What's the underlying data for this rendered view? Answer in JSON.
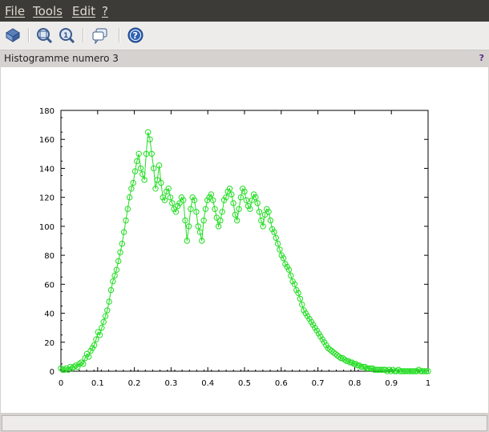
{
  "menu": {
    "file": "File",
    "tools": "Tools",
    "edit": "Edit",
    "help": "?"
  },
  "toolbar": {
    "buttons": [
      {
        "name": "rotate-icon"
      },
      {
        "name": "zoom-icon"
      },
      {
        "name": "zoom-reset-icon"
      },
      {
        "name": "datatip-icon"
      },
      {
        "name": "help-icon"
      }
    ]
  },
  "figure": {
    "title": "Histogramme numero 3",
    "help": "?"
  },
  "colors": {
    "series": "#22dd22",
    "menubar_bg": "#3c3b37"
  },
  "chart_data": {
    "type": "line",
    "title": "",
    "xlabel": "",
    "ylabel": "",
    "xlim": [
      0,
      1
    ],
    "ylim": [
      0,
      180
    ],
    "x_ticks": [
      "0",
      "0.1",
      "0.2",
      "0.3",
      "0.4",
      "0.5",
      "0.6",
      "0.7",
      "0.8",
      "0.9",
      "1"
    ],
    "y_ticks": [
      "0",
      "20",
      "40",
      "60",
      "80",
      "100",
      "120",
      "140",
      "160",
      "180"
    ],
    "grid": false,
    "marker": "circle",
    "series": [
      {
        "values": [
          2,
          1,
          1,
          2,
          1,
          3,
          2,
          3,
          4,
          3,
          5,
          6,
          5,
          9,
          12,
          10,
          14,
          16,
          18,
          22,
          27,
          25,
          30,
          34,
          38,
          42,
          48,
          56,
          62,
          66,
          70,
          76,
          82,
          88,
          96,
          104,
          112,
          120,
          126,
          130,
          138,
          145,
          150,
          140,
          136,
          132,
          150,
          165,
          160,
          150,
          140,
          126,
          132,
          142,
          130,
          120,
          118,
          124,
          126,
          120,
          116,
          112,
          110,
          114,
          116,
          120,
          118,
          104,
          90,
          100,
          112,
          120,
          118,
          110,
          100,
          96,
          90,
          104,
          112,
          118,
          120,
          122,
          118,
          112,
          106,
          100,
          104,
          110,
          118,
          120,
          124,
          126,
          122,
          116,
          108,
          104,
          112,
          120,
          126,
          124,
          118,
          114,
          112,
          118,
          122,
          120,
          116,
          110,
          104,
          100,
          108,
          112,
          110,
          104,
          98,
          96,
          92,
          88,
          84,
          80,
          78,
          74,
          72,
          70,
          66,
          62,
          60,
          56,
          54,
          50,
          46,
          42,
          40,
          38,
          36,
          34,
          32,
          30,
          28,
          26,
          24,
          22,
          20,
          18,
          16,
          15,
          14,
          13,
          12,
          11,
          10,
          9,
          9,
          8,
          7,
          7,
          6,
          6,
          5,
          5,
          4,
          4,
          3,
          3,
          3,
          2,
          2,
          2,
          2,
          1,
          1,
          1,
          1,
          1,
          1,
          1,
          0,
          1,
          0,
          1,
          0,
          0,
          1,
          0,
          0,
          0,
          0,
          0,
          0,
          0,
          0,
          0,
          0,
          1,
          0,
          0,
          0,
          0,
          0
        ]
      }
    ]
  },
  "status": ""
}
